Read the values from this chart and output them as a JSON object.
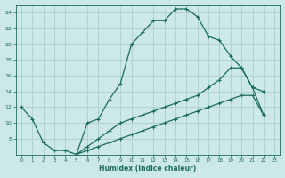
{
  "xlabel": "Humidex (Indice chaleur)",
  "bg_color": "#cce8e8",
  "grid_color": "#aacfcf",
  "line_color": "#1a6b5a",
  "xlim": [
    -0.5,
    23.5
  ],
  "ylim": [
    6,
    25
  ],
  "yticks": [
    8,
    10,
    12,
    14,
    16,
    18,
    20,
    22,
    24
  ],
  "xticks": [
    0,
    1,
    2,
    3,
    4,
    5,
    6,
    7,
    8,
    9,
    10,
    11,
    12,
    13,
    14,
    15,
    16,
    17,
    18,
    19,
    20,
    21,
    22,
    23
  ],
  "lines": [
    {
      "x": [
        0,
        1,
        2,
        3,
        4,
        5,
        6,
        7,
        8,
        9,
        10,
        11,
        12,
        13,
        14,
        15,
        16,
        17,
        18,
        19,
        20,
        21,
        22
      ],
      "y": [
        12,
        10.5,
        7.5,
        6.5,
        6.5,
        6.0,
        10.0,
        10.5,
        13.0,
        15.0,
        20.0,
        21.5,
        23.0,
        23.0,
        24.5,
        24.5,
        23.5,
        21.0,
        20.5,
        18.5,
        17.0,
        14.5,
        14.0
      ]
    },
    {
      "x": [
        5,
        6,
        7,
        8,
        9,
        10,
        11,
        12,
        13,
        14,
        15,
        16,
        17,
        18,
        19,
        20,
        21,
        22
      ],
      "y": [
        6.0,
        7.0,
        8.0,
        9.0,
        10.0,
        10.5,
        11.0,
        11.5,
        12.0,
        12.5,
        13.0,
        13.5,
        14.5,
        15.5,
        17.0,
        17.0,
        14.5,
        11.0
      ]
    },
    {
      "x": [
        5,
        6,
        7,
        8,
        9,
        10,
        11,
        12,
        13,
        14,
        15,
        16,
        17,
        18,
        19,
        20,
        21,
        22
      ],
      "y": [
        6.0,
        6.5,
        7.0,
        7.5,
        8.0,
        8.5,
        9.0,
        9.5,
        10.0,
        10.5,
        11.0,
        11.5,
        12.0,
        12.5,
        13.0,
        13.5,
        13.5,
        11.0
      ]
    }
  ]
}
